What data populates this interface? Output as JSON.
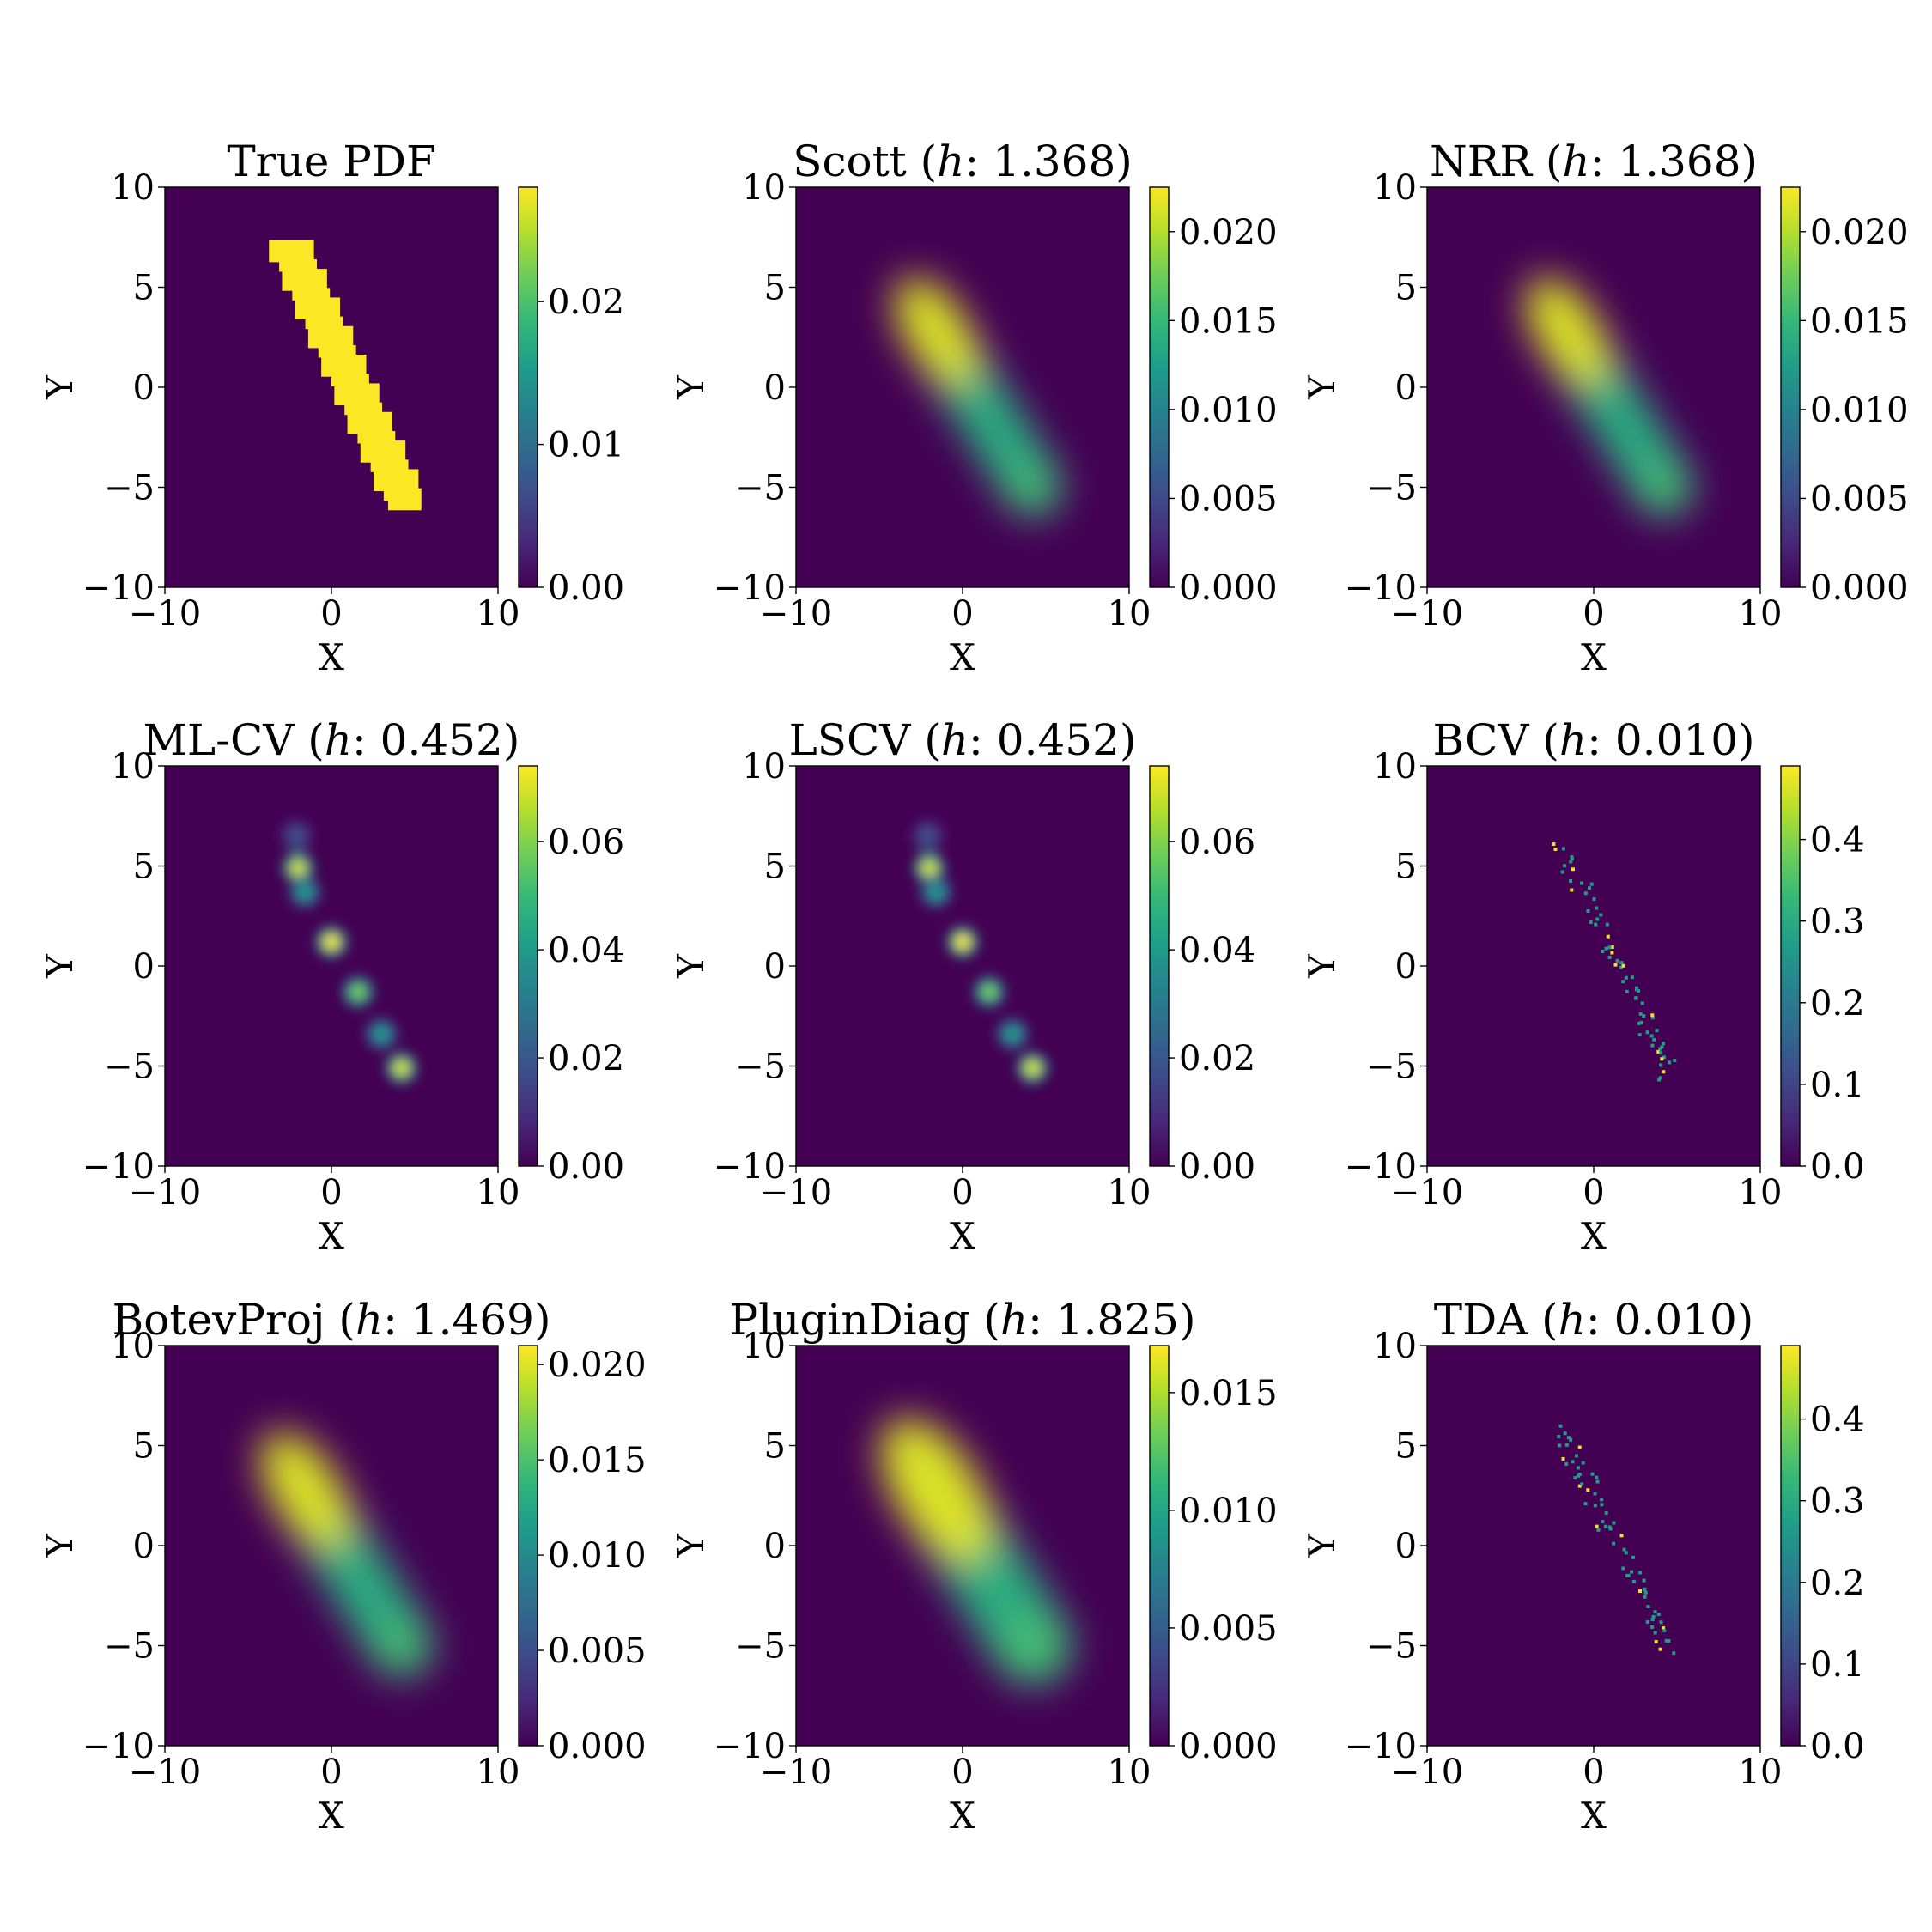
{
  "chart_data": [
    {
      "type": "heatmap",
      "title": "True PDF",
      "xlabel": "X",
      "ylabel": "Y",
      "xlim": [
        -10,
        10
      ],
      "ylim": [
        -10,
        10
      ],
      "xticks": [
        "−10",
        "0",
        "10"
      ],
      "yticks": [
        "−10",
        "−5",
        "0",
        "5",
        "10"
      ],
      "colormap": "viridis",
      "colorbar": {
        "min": 0.0,
        "max": 0.028,
        "ticks": [
          "0.00",
          "0.01",
          "0.02"
        ],
        "tick_values": [
          0,
          0.01,
          0.02
        ]
      },
      "density": {
        "kind": "band",
        "from": [
          -2.4,
          6.8
        ],
        "to": [
          4.4,
          -5.6
        ],
        "width": 1.0,
        "peak": 0.028
      }
    },
    {
      "type": "heatmap",
      "title": "Scott (h: 1.368)",
      "xlabel": "X",
      "ylabel": "Y",
      "xlim": [
        -10,
        10
      ],
      "ylim": [
        -10,
        10
      ],
      "xticks": [
        "−10",
        "0",
        "10"
      ],
      "yticks": [
        "−10",
        "−5",
        "0",
        "5",
        "10"
      ],
      "colormap": "viridis",
      "colorbar": {
        "min": 0.0,
        "max": 0.0225,
        "ticks": [
          "0.000",
          "0.005",
          "0.010",
          "0.015",
          "0.020"
        ],
        "tick_values": [
          0,
          0.005,
          0.01,
          0.015,
          0.02
        ]
      },
      "density": {
        "kind": "smooth",
        "bandwidth": 1.368,
        "peak": 0.0225
      }
    },
    {
      "type": "heatmap",
      "title": "NRR (h: 1.368)",
      "xlabel": "X",
      "ylabel": "Y",
      "xlim": [
        -10,
        10
      ],
      "ylim": [
        -10,
        10
      ],
      "xticks": [
        "−10",
        "0",
        "10"
      ],
      "yticks": [
        "−10",
        "−5",
        "0",
        "5",
        "10"
      ],
      "colormap": "viridis",
      "colorbar": {
        "min": 0.0,
        "max": 0.0225,
        "ticks": [
          "0.000",
          "0.005",
          "0.010",
          "0.015",
          "0.020"
        ],
        "tick_values": [
          0,
          0.005,
          0.01,
          0.015,
          0.02
        ]
      },
      "density": {
        "kind": "smooth",
        "bandwidth": 1.368,
        "peak": 0.0225
      }
    },
    {
      "type": "heatmap",
      "title": "ML-CV (h: 0.452)",
      "xlabel": "X",
      "ylabel": "Y",
      "xlim": [
        -10,
        10
      ],
      "ylim": [
        -10,
        10
      ],
      "xticks": [
        "−10",
        "0",
        "10"
      ],
      "yticks": [
        "−10",
        "−5",
        "0",
        "5",
        "10"
      ],
      "colormap": "viridis",
      "colorbar": {
        "min": 0.0,
        "max": 0.074,
        "ticks": [
          "0.00",
          "0.02",
          "0.04",
          "0.06"
        ],
        "tick_values": [
          0,
          0.02,
          0.04,
          0.06
        ]
      },
      "density": {
        "kind": "blobs",
        "bandwidth": 0.452,
        "peak": 0.074
      }
    },
    {
      "type": "heatmap",
      "title": "LSCV (h: 0.452)",
      "xlabel": "X",
      "ylabel": "Y",
      "xlim": [
        -10,
        10
      ],
      "ylim": [
        -10,
        10
      ],
      "xticks": [
        "−10",
        "0",
        "10"
      ],
      "yticks": [
        "−10",
        "−5",
        "0",
        "5",
        "10"
      ],
      "colormap": "viridis",
      "colorbar": {
        "min": 0.0,
        "max": 0.074,
        "ticks": [
          "0.00",
          "0.02",
          "0.04",
          "0.06"
        ],
        "tick_values": [
          0,
          0.02,
          0.04,
          0.06
        ]
      },
      "density": {
        "kind": "blobs",
        "bandwidth": 0.452,
        "peak": 0.074
      }
    },
    {
      "type": "heatmap",
      "title": "BCV (h: 0.010)",
      "xlabel": "X",
      "ylabel": "Y",
      "xlim": [
        -10,
        10
      ],
      "ylim": [
        -10,
        10
      ],
      "xticks": [
        "−10",
        "0",
        "10"
      ],
      "yticks": [
        "−10",
        "−5",
        "0",
        "5",
        "10"
      ],
      "colormap": "viridis",
      "colorbar": {
        "min": 0.0,
        "max": 0.49,
        "ticks": [
          "0.0",
          "0.1",
          "0.2",
          "0.3",
          "0.4"
        ],
        "tick_values": [
          0,
          0.1,
          0.2,
          0.3,
          0.4
        ]
      },
      "density": {
        "kind": "pixels",
        "bandwidth": 0.01,
        "peak": 0.49
      }
    },
    {
      "type": "heatmap",
      "title": "BotevProj (h: 1.469)",
      "xlabel": "X",
      "ylabel": "Y",
      "xlim": [
        -10,
        10
      ],
      "ylim": [
        -10,
        10
      ],
      "xticks": [
        "−10",
        "0",
        "10"
      ],
      "yticks": [
        "−10",
        "−5",
        "0",
        "5",
        "10"
      ],
      "colormap": "viridis",
      "colorbar": {
        "min": 0.0,
        "max": 0.021,
        "ticks": [
          "0.000",
          "0.005",
          "0.010",
          "0.015",
          "0.020"
        ],
        "tick_values": [
          0,
          0.005,
          0.01,
          0.015,
          0.02
        ]
      },
      "density": {
        "kind": "smooth",
        "bandwidth": 1.469,
        "peak": 0.021
      }
    },
    {
      "type": "heatmap",
      "title": "PluginDiag (h: 1.825)",
      "xlabel": "X",
      "ylabel": "Y",
      "xlim": [
        -10,
        10
      ],
      "ylim": [
        -10,
        10
      ],
      "xticks": [
        "−10",
        "0",
        "10"
      ],
      "yticks": [
        "−10",
        "−5",
        "0",
        "5",
        "10"
      ],
      "colormap": "viridis",
      "colorbar": {
        "min": 0.0,
        "max": 0.017,
        "ticks": [
          "0.000",
          "0.005",
          "0.010",
          "0.015"
        ],
        "tick_values": [
          0,
          0.005,
          0.01,
          0.015
        ]
      },
      "density": {
        "kind": "smooth",
        "bandwidth": 1.825,
        "peak": 0.017
      }
    },
    {
      "type": "heatmap",
      "title": "TDA (h: 0.010)",
      "xlabel": "X",
      "ylabel": "Y",
      "xlim": [
        -10,
        10
      ],
      "ylim": [
        -10,
        10
      ],
      "xticks": [
        "−10",
        "0",
        "10"
      ],
      "yticks": [
        "−10",
        "−5",
        "0",
        "5",
        "10"
      ],
      "colormap": "viridis",
      "colorbar": {
        "min": 0.0,
        "max": 0.49,
        "ticks": [
          "0.0",
          "0.1",
          "0.2",
          "0.3",
          "0.4"
        ],
        "tick_values": [
          0,
          0.1,
          0.2,
          0.3,
          0.4
        ]
      },
      "density": {
        "kind": "pixels",
        "bandwidth": 0.01,
        "peak": 0.49
      }
    }
  ]
}
